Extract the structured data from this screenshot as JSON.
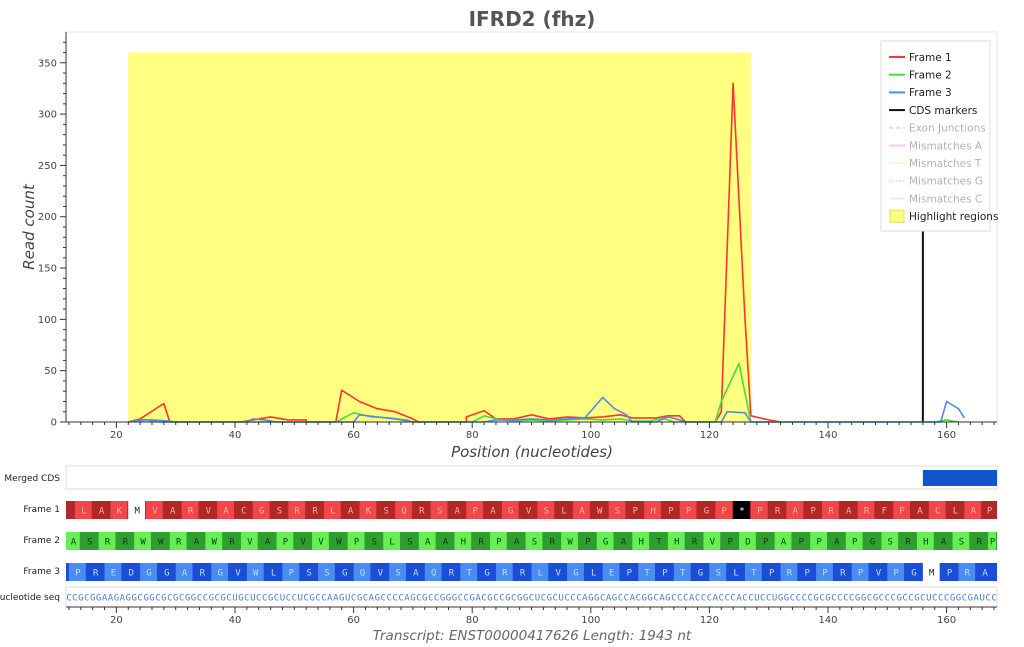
{
  "chart_data": {
    "type": "line",
    "title": "IFRD2 (fhz)",
    "xlabel": "Position (nucleotides)",
    "ylabel": "Read count",
    "xlim": [
      11.5,
      168.5
    ],
    "ylim": [
      0,
      380
    ],
    "x_ticks": [
      20,
      40,
      60,
      80,
      100,
      120,
      140,
      160
    ],
    "y_ticks": [
      0,
      50,
      100,
      150,
      200,
      250,
      300,
      350
    ],
    "highlight": {
      "x_start": 22,
      "x_end": 127,
      "y_top": 360,
      "color": "#ffff80"
    },
    "cds_markers": [
      156
    ],
    "series": [
      {
        "name": "Frame 1",
        "color": "#ff3333",
        "points": [
          [
            22,
            0
          ],
          [
            24,
            3
          ],
          [
            28,
            18
          ],
          [
            29,
            0
          ],
          [
            41,
            0
          ],
          [
            43,
            2
          ],
          [
            46,
            5
          ],
          [
            49,
            2
          ],
          [
            52,
            2
          ],
          [
            52,
            0
          ],
          [
            57,
            0
          ],
          [
            58,
            31
          ],
          [
            61,
            20
          ],
          [
            64,
            13
          ],
          [
            67,
            10
          ],
          [
            70,
            3
          ],
          [
            71,
            0
          ],
          [
            79,
            0
          ],
          [
            79,
            5
          ],
          [
            82,
            11
          ],
          [
            84,
            3
          ],
          [
            87,
            3
          ],
          [
            90,
            7
          ],
          [
            93,
            3
          ],
          [
            96,
            5
          ],
          [
            99,
            4
          ],
          [
            102,
            5
          ],
          [
            105,
            7
          ],
          [
            107,
            4
          ],
          [
            111,
            4
          ],
          [
            113,
            6
          ],
          [
            115,
            6
          ],
          [
            116,
            0
          ],
          [
            121,
            0
          ],
          [
            122,
            10
          ],
          [
            124,
            330
          ],
          [
            126,
            100
          ],
          [
            127,
            6
          ],
          [
            130,
            2
          ],
          [
            132,
            0
          ]
        ]
      },
      {
        "name": "Frame 2",
        "color": "#44dd44",
        "points": [
          [
            23,
            0
          ],
          [
            25,
            2
          ],
          [
            27,
            0
          ],
          [
            57,
            0
          ],
          [
            60,
            9
          ],
          [
            63,
            5
          ],
          [
            66,
            4
          ],
          [
            69,
            2
          ],
          [
            70,
            0
          ],
          [
            80,
            0
          ],
          [
            82,
            6
          ],
          [
            84,
            3
          ],
          [
            87,
            1
          ],
          [
            90,
            2
          ],
          [
            93,
            1
          ],
          [
            96,
            2
          ],
          [
            99,
            3
          ],
          [
            102,
            2
          ],
          [
            105,
            3
          ],
          [
            107,
            1
          ],
          [
            110,
            1
          ],
          [
            112,
            4
          ],
          [
            114,
            0
          ],
          [
            121,
            0
          ],
          [
            122,
            20
          ],
          [
            125,
            57
          ],
          [
            127,
            0
          ],
          [
            158,
            0
          ],
          [
            160,
            2
          ],
          [
            162,
            0
          ]
        ]
      },
      {
        "name": "Frame 3",
        "color": "#5588ee",
        "points": [
          [
            22,
            0
          ],
          [
            24,
            2
          ],
          [
            26,
            2
          ],
          [
            29,
            1
          ],
          [
            30,
            0
          ],
          [
            42,
            0
          ],
          [
            43,
            3
          ],
          [
            45,
            2
          ],
          [
            47,
            0
          ],
          [
            60,
            0
          ],
          [
            61,
            7
          ],
          [
            64,
            5
          ],
          [
            67,
            3
          ],
          [
            69,
            1
          ],
          [
            70,
            0
          ],
          [
            82,
            0
          ],
          [
            84,
            2
          ],
          [
            87,
            2
          ],
          [
            90,
            3
          ],
          [
            93,
            2
          ],
          [
            96,
            3
          ],
          [
            99,
            4
          ],
          [
            102,
            24
          ],
          [
            104,
            13
          ],
          [
            106,
            7
          ],
          [
            107,
            0
          ],
          [
            111,
            0
          ],
          [
            113,
            5
          ],
          [
            115,
            2
          ],
          [
            116,
            0
          ],
          [
            122,
            0
          ],
          [
            123,
            10
          ],
          [
            126,
            9
          ],
          [
            127,
            0
          ],
          [
            159,
            0
          ],
          [
            160,
            20
          ],
          [
            162,
            13
          ],
          [
            163,
            4
          ]
        ]
      }
    ],
    "legend": {
      "placement": "top-right",
      "items": [
        {
          "label": "Frame 1",
          "kind": "line",
          "color": "#ff3333",
          "faded": false
        },
        {
          "label": "Frame 2",
          "kind": "line",
          "color": "#44dd44",
          "faded": false
        },
        {
          "label": "Frame 3",
          "kind": "line",
          "color": "#5588ee",
          "faded": false
        },
        {
          "label": "CDS markers",
          "kind": "line",
          "color": "#111111",
          "faded": false
        },
        {
          "label": "Exon Junctions",
          "kind": "dash",
          "color": "#999999",
          "faded": true
        },
        {
          "label": "Mismatches A",
          "kind": "line",
          "color": "#ee66ee",
          "faded": true
        },
        {
          "label": "Mismatches T",
          "kind": "line",
          "color": "#f0e070",
          "faded": true
        },
        {
          "label": "Mismatches G",
          "kind": "dot",
          "color": "#99bb55",
          "faded": true
        },
        {
          "label": "Mismatches C",
          "kind": "line",
          "color": "#cccccc",
          "faded": true
        },
        {
          "label": "Highlight regions",
          "kind": "box",
          "color": "#ffff80",
          "faded": false
        }
      ]
    },
    "merged_cds": {
      "label": "Merged CDS",
      "x_start": 156,
      "x_end": 168.5,
      "color": "#1155cc"
    },
    "frame_tracks": [
      {
        "label": "Frame 1",
        "start": 13,
        "dark": "#b02828",
        "light": "#f04848",
        "text": "#ffb0b0",
        "letters": "LAKMVARVACGSRRLAKSQRSAPAGVSLAWSPHPPGP*PRAPRARFPACLAP",
        "special": {
          "M": "white",
          "*": "black"
        }
      },
      {
        "label": "Frame 2",
        "start": 11,
        "dark": "#2e9e2e",
        "light": "#66ee55",
        "text": "#0d3d0d",
        "letters": "ASRRWWRAWRVAPVVWPSLSAAHRPASRWPGAHTHRVPDPAPPAPGSRHASRP",
        "special": {}
      },
      {
        "label": "Frame 3",
        "start": 12,
        "dark": "#1a4ed6",
        "light": "#4a8cf2",
        "text": "#c4dcff",
        "letters": "PREDGGARGVWLPSSGQVSAQRTGRRLVGLEPTPTGSLTPRPPRPVPGMPRA",
        "special": {
          "M": "white"
        }
      }
    ],
    "nucleotide_track": {
      "label": "Nucleotide seq",
      "sequence": "CCGCGGAAGAGGCGGCGCGCGGCCGCGCUGCUCCGCUCCUCGCCAAGUCGCAGCCCCAGCGCCGGGCCGACGCCGCGGCUCGCUCCCAGGCAGCCACGGCAGCCCACCCACCCACCUCCUGGCCCCGCGCCCCGGCGCCCGCCGCUCCCGGCGAUCCCC"
    },
    "footer": "Transcript: ENST00000417626   Length: 1943 nt"
  }
}
